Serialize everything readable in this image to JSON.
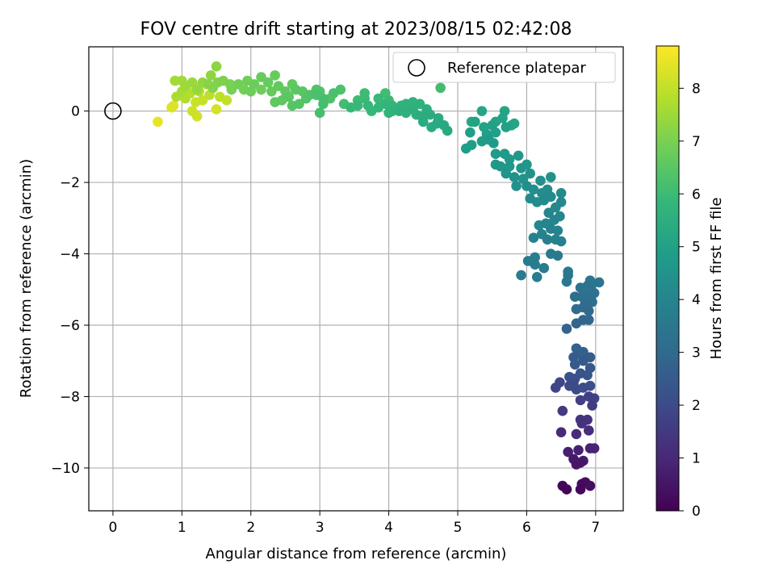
{
  "chart_data": {
    "type": "scatter",
    "title": "FOV centre drift starting at 2023/08/15 02:42:08",
    "xlabel": "Angular distance from reference (arcmin)",
    "ylabel": "Rotation from reference (arcmin)",
    "xlim": [
      -0.35,
      7.4
    ],
    "ylim": [
      -11.2,
      1.8
    ],
    "x_ticks": [
      0,
      1,
      2,
      3,
      4,
      5,
      6,
      7
    ],
    "y_ticks": [
      0,
      -2,
      -4,
      -6,
      -8,
      -10
    ],
    "grid": true,
    "legend": {
      "placement": "top-right",
      "entries": [
        "Reference platepar"
      ]
    },
    "reference_point": {
      "x": 0,
      "y": 0
    },
    "colorbar": {
      "label": "Hours from first FF file",
      "colormap": "viridis",
      "range": [
        0,
        8.8
      ],
      "ticks": [
        0,
        1,
        2,
        3,
        4,
        5,
        6,
        7,
        8
      ]
    },
    "series": [
      {
        "marker": "o",
        "points": [
          [
            6.58,
            -10.6,
            0.1
          ],
          [
            6.52,
            -10.5,
            0.15
          ],
          [
            6.78,
            -10.6,
            0.2
          ],
          [
            6.8,
            -10.45,
            0.25
          ],
          [
            6.92,
            -10.5,
            0.3
          ],
          [
            6.85,
            -10.4,
            0.35
          ],
          [
            6.72,
            -9.9,
            0.5
          ],
          [
            6.78,
            -9.85,
            0.55
          ],
          [
            6.68,
            -9.75,
            0.6
          ],
          [
            6.82,
            -9.8,
            0.65
          ],
          [
            6.6,
            -9.55,
            0.75
          ],
          [
            6.75,
            -9.5,
            0.8
          ],
          [
            6.92,
            -9.45,
            0.85
          ],
          [
            6.98,
            -9.45,
            0.9
          ],
          [
            6.5,
            -9.0,
            1.05
          ],
          [
            6.72,
            -9.05,
            1.1
          ],
          [
            6.9,
            -8.95,
            1.15
          ],
          [
            6.8,
            -8.75,
            1.25
          ],
          [
            6.88,
            -8.65,
            1.3
          ],
          [
            6.78,
            -8.65,
            1.35
          ],
          [
            6.52,
            -8.4,
            1.5
          ],
          [
            6.95,
            -8.25,
            1.55
          ],
          [
            6.9,
            -8.0,
            1.65
          ],
          [
            6.78,
            -8.1,
            1.7
          ],
          [
            6.98,
            -8.05,
            1.75
          ],
          [
            6.42,
            -7.75,
            1.85
          ],
          [
            6.48,
            -7.6,
            1.9
          ],
          [
            6.62,
            -7.7,
            1.95
          ],
          [
            6.68,
            -7.65,
            2.0
          ],
          [
            6.72,
            -7.8,
            2.05
          ],
          [
            6.82,
            -7.75,
            2.1
          ],
          [
            6.92,
            -7.7,
            2.15
          ],
          [
            6.62,
            -7.45,
            2.2
          ],
          [
            6.7,
            -7.5,
            2.25
          ],
          [
            6.78,
            -7.35,
            2.3
          ],
          [
            6.88,
            -7.4,
            2.35
          ],
          [
            6.92,
            -7.2,
            2.4
          ],
          [
            6.7,
            -7.1,
            2.45
          ],
          [
            6.82,
            -7.0,
            2.5
          ],
          [
            6.92,
            -6.9,
            2.55
          ],
          [
            6.68,
            -6.9,
            2.6
          ],
          [
            6.78,
            -6.8,
            2.65
          ],
          [
            6.72,
            -6.65,
            2.7
          ],
          [
            6.82,
            -6.75,
            2.72
          ],
          [
            6.58,
            -6.1,
            2.8
          ],
          [
            6.72,
            -5.95,
            2.85
          ],
          [
            6.82,
            -5.85,
            2.9
          ],
          [
            6.9,
            -5.85,
            2.95
          ],
          [
            6.9,
            -5.6,
            3.0
          ],
          [
            6.82,
            -5.5,
            3.05
          ],
          [
            6.72,
            -5.55,
            3.1
          ],
          [
            6.85,
            -5.35,
            3.15
          ],
          [
            6.95,
            -5.35,
            3.2
          ],
          [
            6.7,
            -5.2,
            3.25
          ],
          [
            6.8,
            -5.2,
            3.28
          ],
          [
            6.88,
            -5.15,
            3.3
          ],
          [
            6.98,
            -5.1,
            3.32
          ],
          [
            6.78,
            -4.95,
            3.35
          ],
          [
            6.88,
            -4.9,
            3.38
          ],
          [
            6.95,
            -4.85,
            3.4
          ],
          [
            7.05,
            -4.8,
            3.42
          ],
          [
            6.92,
            -4.75,
            3.45
          ],
          [
            6.6,
            -4.5,
            3.5
          ],
          [
            6.6,
            -4.6,
            3.52
          ],
          [
            6.58,
            -4.78,
            3.55
          ],
          [
            6.35,
            -4.0,
            3.6
          ],
          [
            6.45,
            -4.05,
            3.62
          ],
          [
            6.25,
            -4.4,
            3.65
          ],
          [
            6.12,
            -4.3,
            3.68
          ],
          [
            6.02,
            -4.2,
            3.7
          ],
          [
            6.15,
            -4.65,
            3.72
          ],
          [
            5.92,
            -4.6,
            3.75
          ],
          [
            6.12,
            -4.1,
            3.78
          ],
          [
            6.3,
            -3.6,
            3.8
          ],
          [
            6.42,
            -3.6,
            3.82
          ],
          [
            6.5,
            -3.65,
            3.85
          ],
          [
            6.1,
            -3.55,
            3.88
          ],
          [
            6.22,
            -3.45,
            3.9
          ],
          [
            6.35,
            -3.3,
            3.92
          ],
          [
            6.45,
            -3.35,
            3.95
          ],
          [
            6.28,
            -3.15,
            4.0
          ],
          [
            6.4,
            -3.05,
            4.02
          ],
          [
            6.48,
            -2.95,
            4.05
          ],
          [
            6.18,
            -3.2,
            4.08
          ],
          [
            6.32,
            -2.85,
            4.1
          ],
          [
            6.42,
            -2.7,
            4.12
          ],
          [
            6.5,
            -2.55,
            4.15
          ],
          [
            6.25,
            -2.5,
            4.18
          ],
          [
            6.35,
            -2.4,
            4.2
          ],
          [
            6.5,
            -2.3,
            4.22
          ],
          [
            6.05,
            -2.45,
            4.25
          ],
          [
            6.15,
            -2.55,
            4.28
          ],
          [
            6.22,
            -2.3,
            4.3
          ],
          [
            6.3,
            -2.2,
            4.32
          ],
          [
            6.1,
            -2.2,
            4.35
          ],
          [
            6.0,
            -2.1,
            4.38
          ],
          [
            6.2,
            -1.95,
            4.4
          ],
          [
            6.35,
            -1.85,
            4.42
          ],
          [
            5.85,
            -2.1,
            4.45
          ],
          [
            5.95,
            -1.9,
            4.48
          ],
          [
            6.05,
            -1.75,
            4.5
          ],
          [
            5.82,
            -1.85,
            4.52
          ],
          [
            5.7,
            -1.75,
            4.55
          ],
          [
            5.92,
            -1.6,
            4.58
          ],
          [
            6.0,
            -1.5,
            4.6
          ],
          [
            5.75,
            -1.55,
            4.62
          ],
          [
            5.62,
            -1.55,
            4.65
          ],
          [
            5.55,
            -1.5,
            4.68
          ],
          [
            5.75,
            -1.35,
            4.7
          ],
          [
            5.88,
            -1.25,
            4.72
          ],
          [
            5.68,
            -1.2,
            4.75
          ],
          [
            5.55,
            -1.2,
            4.78
          ],
          [
            5.45,
            -0.8,
            4.8
          ],
          [
            5.52,
            -0.9,
            4.82
          ],
          [
            5.35,
            -0.85,
            4.85
          ],
          [
            5.2,
            -0.95,
            4.88
          ],
          [
            5.12,
            -1.05,
            4.9
          ],
          [
            5.18,
            -0.6,
            4.92
          ],
          [
            5.42,
            -0.65,
            4.95
          ],
          [
            5.55,
            -0.6,
            4.98
          ],
          [
            5.7,
            -0.45,
            5.0
          ],
          [
            5.5,
            -0.4,
            5.02
          ],
          [
            5.38,
            -0.45,
            5.05
          ],
          [
            5.25,
            -0.3,
            5.08
          ],
          [
            5.55,
            -0.3,
            5.1
          ],
          [
            5.65,
            -0.2,
            5.12
          ],
          [
            5.78,
            -0.4,
            5.15
          ],
          [
            5.68,
            0.0,
            5.18
          ],
          [
            5.82,
            -0.35,
            5.2
          ],
          [
            5.35,
            0.0,
            5.22
          ],
          [
            5.2,
            -0.3,
            5.25
          ],
          [
            4.85,
            -0.55,
            5.3
          ],
          [
            4.8,
            -0.4,
            5.32
          ],
          [
            4.7,
            -0.35,
            5.35
          ],
          [
            4.62,
            -0.45,
            5.38
          ],
          [
            4.5,
            -0.3,
            5.4
          ],
          [
            4.72,
            -0.2,
            5.42
          ],
          [
            4.6,
            -0.1,
            5.45
          ],
          [
            4.48,
            -0.15,
            5.48
          ],
          [
            4.55,
            0.05,
            5.5
          ],
          [
            4.4,
            -0.1,
            5.52
          ],
          [
            4.35,
            0.05,
            5.55
          ],
          [
            4.25,
            -0.05,
            5.58
          ],
          [
            4.15,
            0.0,
            5.6
          ],
          [
            4.45,
            0.2,
            5.62
          ],
          [
            4.35,
            0.25,
            5.65
          ],
          [
            4.25,
            0.2,
            5.68
          ],
          [
            4.18,
            0.15,
            5.7
          ],
          [
            4.05,
            0.0,
            5.72
          ],
          [
            4.0,
            -0.05,
            5.75
          ],
          [
            4.05,
            0.15,
            5.78
          ],
          [
            3.95,
            0.2,
            5.8
          ],
          [
            3.85,
            0.1,
            5.82
          ],
          [
            3.75,
            0.0,
            5.85
          ],
          [
            3.7,
            0.15,
            5.88
          ],
          [
            3.55,
            0.15,
            5.9
          ],
          [
            3.45,
            0.1,
            5.92
          ],
          [
            3.85,
            0.35,
            5.95
          ],
          [
            4.0,
            0.3,
            5.98
          ],
          [
            3.65,
            0.35,
            6.0
          ],
          [
            3.55,
            0.3,
            6.02
          ],
          [
            3.65,
            0.5,
            6.05
          ],
          [
            3.95,
            0.5,
            6.08
          ],
          [
            4.75,
            0.65,
            6.1
          ],
          [
            3.35,
            0.2,
            6.12
          ],
          [
            3.05,
            0.2,
            6.15
          ],
          [
            3.0,
            -0.05,
            6.18
          ],
          [
            3.05,
            0.35,
            6.2
          ],
          [
            2.95,
            0.45,
            6.22
          ],
          [
            3.2,
            0.5,
            6.25
          ],
          [
            3.3,
            0.6,
            6.28
          ],
          [
            3.15,
            0.35,
            6.3
          ],
          [
            3.0,
            0.55,
            6.32
          ],
          [
            2.85,
            0.45,
            6.35
          ],
          [
            2.95,
            0.6,
            6.38
          ],
          [
            2.8,
            0.35,
            6.4
          ],
          [
            2.7,
            0.2,
            6.42
          ],
          [
            2.6,
            0.15,
            6.45
          ],
          [
            2.75,
            0.55,
            6.48
          ],
          [
            2.65,
            0.6,
            6.5
          ],
          [
            2.55,
            0.4,
            6.52
          ],
          [
            2.45,
            0.3,
            6.55
          ],
          [
            2.35,
            0.25,
            6.58
          ],
          [
            2.5,
            0.55,
            6.6
          ],
          [
            2.6,
            0.75,
            6.62
          ],
          [
            2.4,
            0.7,
            6.65
          ],
          [
            2.3,
            0.55,
            6.68
          ],
          [
            2.25,
            0.8,
            6.7
          ],
          [
            2.35,
            1.0,
            6.72
          ],
          [
            2.15,
            0.95,
            6.75
          ],
          [
            2.05,
            0.75,
            6.78
          ],
          [
            2.0,
            0.55,
            6.8
          ],
          [
            2.15,
            0.6,
            6.82
          ],
          [
            1.95,
            0.85,
            6.85
          ],
          [
            1.9,
            0.6,
            6.88
          ],
          [
            1.82,
            0.75,
            6.9
          ],
          [
            1.72,
            0.6,
            6.95
          ],
          [
            1.7,
            0.75,
            7.0
          ],
          [
            1.6,
            0.85,
            7.05
          ],
          [
            1.52,
            0.8,
            7.1
          ],
          [
            1.45,
            0.65,
            7.15
          ],
          [
            1.38,
            0.75,
            7.2
          ],
          [
            1.5,
            1.25,
            7.25
          ],
          [
            1.42,
            1.0,
            7.3
          ],
          [
            1.3,
            0.8,
            7.35
          ],
          [
            1.22,
            0.6,
            7.4
          ],
          [
            1.15,
            0.8,
            7.45
          ],
          [
            1.05,
            0.7,
            7.5
          ],
          [
            1.0,
            0.85,
            7.55
          ],
          [
            0.9,
            0.85,
            7.6
          ],
          [
            1.0,
            0.55,
            7.65
          ],
          [
            0.92,
            0.4,
            7.7
          ],
          [
            1.05,
            0.35,
            7.75
          ],
          [
            1.12,
            0.5,
            7.8
          ],
          [
            1.25,
            0.55,
            7.85
          ],
          [
            1.4,
            0.45,
            7.9
          ],
          [
            1.55,
            0.4,
            7.95
          ],
          [
            1.65,
            0.3,
            8.0
          ],
          [
            1.3,
            0.3,
            8.05
          ],
          [
            1.2,
            0.25,
            8.1
          ],
          [
            1.15,
            0.0,
            8.15
          ],
          [
            1.22,
            -0.15,
            8.2
          ],
          [
            1.5,
            0.05,
            8.25
          ],
          [
            0.85,
            0.1,
            8.35
          ],
          [
            0.88,
            0.15,
            8.4
          ],
          [
            0.65,
            -0.3,
            8.5
          ],
          [
            1.2,
            0.65,
            8.55
          ],
          [
            1.35,
            0.75,
            8.6
          ]
        ]
      }
    ]
  }
}
